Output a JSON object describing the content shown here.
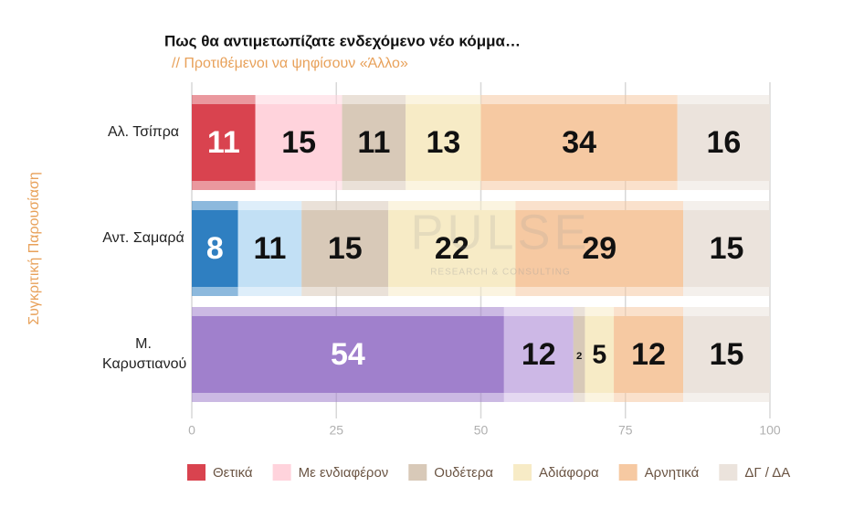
{
  "chart_data": {
    "type": "stacked-bar",
    "orientation": "horizontal",
    "title": "Πως θα αντιμετωπίζατε ενδεχόμενο νέο κόμμα…",
    "subtitle": "// Προτιθέμενοι να ψηφίσουν «Άλλο»",
    "y_label": "Συγκριτική Παρουσίαση",
    "watermark": "PULSE",
    "watermark_sub": "RESEARCH & CONSULTING",
    "categories": [
      "Αλ. Τσίπρα",
      "Αντ. Σαμαρά",
      "Μ. Καρυστιανού"
    ],
    "series": [
      {
        "name": "Θετικά",
        "color": "#d9434f",
        "colors": [
          "#d9434f",
          "#2f7fc1",
          "#a080cc"
        ],
        "label_colors": [
          "#ffffff",
          "#ffffff",
          "#ffffff"
        ],
        "values": [
          11,
          8,
          54
        ]
      },
      {
        "name": "Με ενδιαφέρον",
        "color": "#ffd3dc",
        "colors": [
          "#ffd3dc",
          "#c2e0f5",
          "#cdb8e6"
        ],
        "label_colors": [
          "#111111",
          "#111111",
          "#111111"
        ],
        "values": [
          15,
          11,
          12
        ]
      },
      {
        "name": "Ουδέτερα",
        "color": "#d8c9b8",
        "colors": [
          "#d8c9b8",
          "#d8c9b8",
          "#d8c9b8"
        ],
        "label_colors": [
          "#111111",
          "#111111",
          "#111111"
        ],
        "values": [
          11,
          15,
          2
        ]
      },
      {
        "name": "Αδιάφορα",
        "color": "#f7ebc6",
        "colors": [
          "#f7ebc6",
          "#f7ebc6",
          "#f7ebc6"
        ],
        "label_colors": [
          "#111111",
          "#111111",
          "#111111"
        ],
        "values": [
          13,
          22,
          5
        ]
      },
      {
        "name": "Αρνητικά",
        "color": "#f6c9a2",
        "colors": [
          "#f6c9a2",
          "#f6c9a2",
          "#f6c9a2"
        ],
        "label_colors": [
          "#111111",
          "#111111",
          "#111111"
        ],
        "values": [
          34,
          29,
          12
        ]
      },
      {
        "name": "ΔΓ / ΔΑ",
        "color": "#ebe3dc",
        "colors": [
          "#ebe3dc",
          "#ebe3dc",
          "#ebe3dc"
        ],
        "label_colors": [
          "#111111",
          "#111111",
          "#111111"
        ],
        "values": [
          16,
          15,
          15
        ]
      }
    ],
    "xlim": [
      0,
      100
    ],
    "xticks": [
      0,
      25,
      50,
      75,
      100
    ],
    "grid": true
  }
}
